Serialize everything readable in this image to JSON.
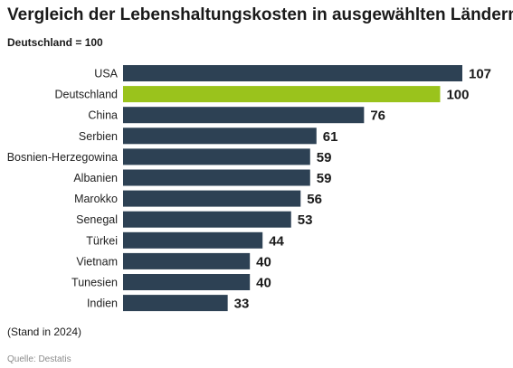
{
  "header": {
    "title": "Vergleich der Lebenshaltungskosten in ausgewählten Ländern",
    "subtitle": "Deutschland = 100"
  },
  "footer": {
    "note": "(Stand in 2024)",
    "source": "Quelle: Destatis"
  },
  "colors": {
    "bar": "#2d4154",
    "highlight": "#9ac31c"
  },
  "chart_data": {
    "type": "bar",
    "orientation": "horizontal",
    "title": "Vergleich der Lebenshaltungskosten in ausgewählten Ländern",
    "subtitle": "Deutschland = 100",
    "categories": [
      "USA",
      "Deutschland",
      "China",
      "Serbien",
      "Bosnien-Herzegowina",
      "Albanien",
      "Marokko",
      "Senegal",
      "Türkei",
      "Vietnam",
      "Tunesien",
      "Indien"
    ],
    "values": [
      107,
      100,
      76,
      61,
      59,
      59,
      56,
      53,
      44,
      40,
      40,
      33
    ],
    "highlight": "Deutschland",
    "xlim": [
      0,
      107
    ],
    "grid": false,
    "legend": "none"
  }
}
